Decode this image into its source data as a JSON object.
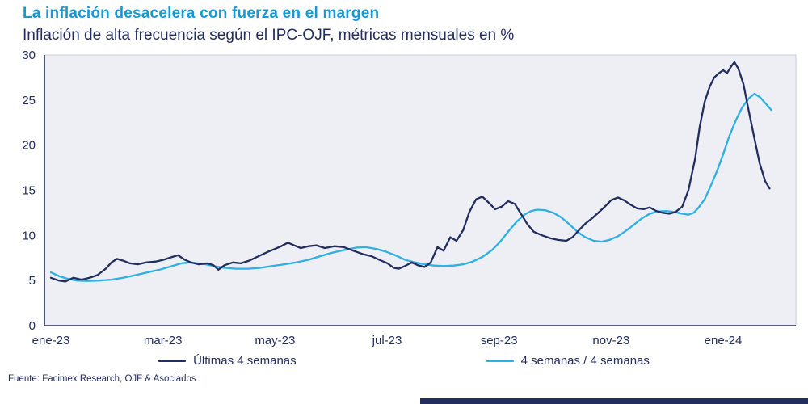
{
  "page": {
    "title": "La inflación desacelera con fuerza en el margen",
    "subtitle": "Inflación de alta frecuencia según el IPC-OJF, métricas mensuales en %",
    "source": "Fuente: Facimex Research, OJF & Asociados"
  },
  "colors": {
    "title": "#1899d5",
    "text_navy": "#232e5f",
    "panel_bg": "#edeff5",
    "panel_border": "#c9cdd9",
    "axis": "#232e5f",
    "accent_bar": "#232e5f"
  },
  "chart_data": {
    "type": "line",
    "title": "La inflación desacelera con fuerza en el margen",
    "subtitle": "Inflación de alta frecuencia según el IPC-OJF, métricas mensuales en %",
    "xlabel": "",
    "ylabel": "%",
    "ylim": [
      0,
      30
    ],
    "yticks": [
      0,
      5,
      10,
      15,
      20,
      25,
      30
    ],
    "xlim": [
      0,
      13.3
    ],
    "x_unit": "months from ene-23",
    "grid": false,
    "legend_position": "bottom",
    "xticks": [
      {
        "pos": 0,
        "label": "ene-23"
      },
      {
        "pos": 2,
        "label": "mar-23"
      },
      {
        "pos": 4,
        "label": "may-23"
      },
      {
        "pos": 6,
        "label": "jul-23"
      },
      {
        "pos": 8,
        "label": "sep-23"
      },
      {
        "pos": 10,
        "label": "nov-23"
      },
      {
        "pos": 12,
        "label": "ene-24"
      }
    ],
    "series": [
      {
        "name": "Últimas 4 semanas",
        "color": "#232e5f",
        "points": [
          [
            0,
            5.3
          ],
          [
            0.14,
            5.0
          ],
          [
            0.26,
            4.9
          ],
          [
            0.4,
            5.3
          ],
          [
            0.55,
            5.1
          ],
          [
            0.69,
            5.3
          ],
          [
            0.83,
            5.6
          ],
          [
            0.98,
            6.3
          ],
          [
            1.08,
            7.0
          ],
          [
            1.18,
            7.4
          ],
          [
            1.29,
            7.2
          ],
          [
            1.41,
            6.9
          ],
          [
            1.55,
            6.8
          ],
          [
            1.7,
            7.0
          ],
          [
            1.87,
            7.1
          ],
          [
            2.01,
            7.3
          ],
          [
            2.16,
            7.6
          ],
          [
            2.27,
            7.8
          ],
          [
            2.39,
            7.3
          ],
          [
            2.5,
            7.0
          ],
          [
            2.64,
            6.8
          ],
          [
            2.79,
            6.9
          ],
          [
            2.9,
            6.7
          ],
          [
            2.99,
            6.2
          ],
          [
            3.1,
            6.7
          ],
          [
            3.25,
            7.0
          ],
          [
            3.39,
            6.9
          ],
          [
            3.54,
            7.2
          ],
          [
            3.71,
            7.7
          ],
          [
            3.88,
            8.2
          ],
          [
            4.0,
            8.5
          ],
          [
            4.11,
            8.8
          ],
          [
            4.23,
            9.2
          ],
          [
            4.34,
            8.9
          ],
          [
            4.46,
            8.6
          ],
          [
            4.6,
            8.8
          ],
          [
            4.74,
            8.9
          ],
          [
            4.89,
            8.6
          ],
          [
            5.06,
            8.8
          ],
          [
            5.23,
            8.7
          ],
          [
            5.4,
            8.3
          ],
          [
            5.58,
            7.9
          ],
          [
            5.72,
            7.7
          ],
          [
            5.86,
            7.3
          ],
          [
            6.01,
            6.9
          ],
          [
            6.12,
            6.4
          ],
          [
            6.21,
            6.3
          ],
          [
            6.32,
            6.6
          ],
          [
            6.44,
            7.0
          ],
          [
            6.55,
            6.7
          ],
          [
            6.67,
            6.5
          ],
          [
            6.78,
            7.0
          ],
          [
            6.9,
            8.7
          ],
          [
            7.01,
            8.3
          ],
          [
            7.13,
            9.8
          ],
          [
            7.24,
            9.4
          ],
          [
            7.36,
            10.6
          ],
          [
            7.47,
            12.6
          ],
          [
            7.59,
            14.0
          ],
          [
            7.7,
            14.3
          ],
          [
            7.82,
            13.6
          ],
          [
            7.93,
            12.9
          ],
          [
            8.05,
            13.2
          ],
          [
            8.16,
            13.8
          ],
          [
            8.28,
            13.5
          ],
          [
            8.39,
            12.4
          ],
          [
            8.51,
            11.2
          ],
          [
            8.62,
            10.4
          ],
          [
            8.77,
            10.0
          ],
          [
            8.91,
            9.7
          ],
          [
            9.05,
            9.5
          ],
          [
            9.2,
            9.4
          ],
          [
            9.31,
            9.8
          ],
          [
            9.43,
            10.6
          ],
          [
            9.54,
            11.3
          ],
          [
            9.66,
            11.9
          ],
          [
            9.77,
            12.5
          ],
          [
            9.89,
            13.2
          ],
          [
            10.0,
            13.9
          ],
          [
            10.12,
            14.2
          ],
          [
            10.23,
            13.9
          ],
          [
            10.35,
            13.4
          ],
          [
            10.46,
            13.0
          ],
          [
            10.58,
            12.9
          ],
          [
            10.69,
            13.1
          ],
          [
            10.81,
            12.7
          ],
          [
            10.92,
            12.5
          ],
          [
            11.04,
            12.4
          ],
          [
            11.15,
            12.6
          ],
          [
            11.27,
            13.2
          ],
          [
            11.38,
            15.0
          ],
          [
            11.5,
            18.5
          ],
          [
            11.58,
            22.0
          ],
          [
            11.67,
            24.8
          ],
          [
            11.76,
            26.5
          ],
          [
            11.84,
            27.5
          ],
          [
            11.93,
            28.0
          ],
          [
            12.0,
            28.3
          ],
          [
            12.07,
            28.0
          ],
          [
            12.14,
            28.7
          ],
          [
            12.2,
            29.2
          ],
          [
            12.27,
            28.5
          ],
          [
            12.36,
            26.8
          ],
          [
            12.45,
            24.0
          ],
          [
            12.55,
            21.0
          ],
          [
            12.65,
            18.0
          ],
          [
            12.75,
            16.0
          ],
          [
            12.83,
            15.2
          ]
        ]
      },
      {
        "name": "4 semanas / 4 semanas",
        "color": "#2fafe3",
        "points": [
          [
            0,
            5.9
          ],
          [
            0.14,
            5.5
          ],
          [
            0.29,
            5.2
          ],
          [
            0.46,
            5.0
          ],
          [
            0.65,
            4.95
          ],
          [
            0.86,
            5.0
          ],
          [
            1.08,
            5.1
          ],
          [
            1.29,
            5.3
          ],
          [
            1.51,
            5.6
          ],
          [
            1.72,
            5.9
          ],
          [
            1.94,
            6.2
          ],
          [
            2.16,
            6.6
          ],
          [
            2.33,
            6.9
          ],
          [
            2.47,
            7.0
          ],
          [
            2.62,
            6.9
          ],
          [
            2.76,
            6.8
          ],
          [
            2.9,
            6.6
          ],
          [
            3.09,
            6.4
          ],
          [
            3.31,
            6.3
          ],
          [
            3.52,
            6.3
          ],
          [
            3.74,
            6.4
          ],
          [
            3.95,
            6.6
          ],
          [
            4.17,
            6.8
          ],
          [
            4.38,
            7.0
          ],
          [
            4.6,
            7.3
          ],
          [
            4.81,
            7.7
          ],
          [
            5.03,
            8.1
          ],
          [
            5.25,
            8.4
          ],
          [
            5.46,
            8.65
          ],
          [
            5.63,
            8.7
          ],
          [
            5.81,
            8.5
          ],
          [
            5.98,
            8.2
          ],
          [
            6.15,
            7.8
          ],
          [
            6.32,
            7.3
          ],
          [
            6.5,
            7.0
          ],
          [
            6.67,
            6.8
          ],
          [
            6.84,
            6.65
          ],
          [
            7.01,
            6.6
          ],
          [
            7.19,
            6.65
          ],
          [
            7.36,
            6.8
          ],
          [
            7.53,
            7.1
          ],
          [
            7.7,
            7.6
          ],
          [
            7.88,
            8.4
          ],
          [
            8.02,
            9.3
          ],
          [
            8.16,
            10.4
          ],
          [
            8.31,
            11.5
          ],
          [
            8.45,
            12.3
          ],
          [
            8.57,
            12.7
          ],
          [
            8.68,
            12.85
          ],
          [
            8.82,
            12.8
          ],
          [
            8.97,
            12.5
          ],
          [
            9.11,
            12.0
          ],
          [
            9.26,
            11.2
          ],
          [
            9.4,
            10.4
          ],
          [
            9.54,
            9.8
          ],
          [
            9.69,
            9.4
          ],
          [
            9.83,
            9.3
          ],
          [
            9.97,
            9.5
          ],
          [
            10.12,
            9.9
          ],
          [
            10.26,
            10.5
          ],
          [
            10.41,
            11.2
          ],
          [
            10.55,
            11.9
          ],
          [
            10.69,
            12.4
          ],
          [
            10.84,
            12.65
          ],
          [
            10.98,
            12.7
          ],
          [
            11.12,
            12.6
          ],
          [
            11.27,
            12.4
          ],
          [
            11.38,
            12.3
          ],
          [
            11.47,
            12.5
          ],
          [
            11.55,
            13.0
          ],
          [
            11.67,
            14.0
          ],
          [
            11.78,
            15.5
          ],
          [
            11.9,
            17.3
          ],
          [
            12.0,
            19.0
          ],
          [
            12.11,
            21.0
          ],
          [
            12.23,
            22.8
          ],
          [
            12.34,
            24.2
          ],
          [
            12.46,
            25.2
          ],
          [
            12.56,
            25.7
          ],
          [
            12.66,
            25.3
          ],
          [
            12.76,
            24.6
          ],
          [
            12.86,
            23.9
          ]
        ]
      }
    ]
  }
}
